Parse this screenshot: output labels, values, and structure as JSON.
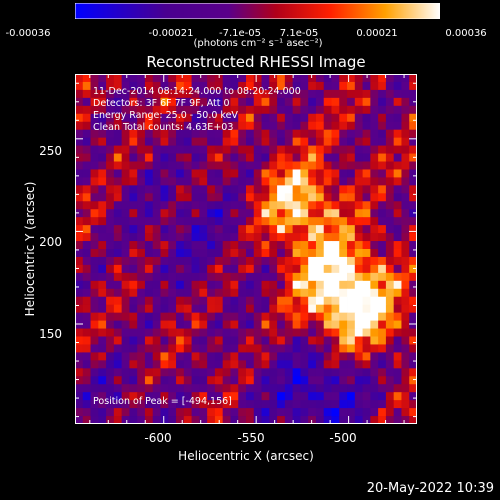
{
  "colorbar": {
    "ticks": [
      "-0.00036",
      "-0.00021",
      "-7.1e-05",
      "7.1e-05",
      "0.00021",
      "0.00036"
    ],
    "unit": "(photons cm⁻² s⁻¹ asec⁻²)",
    "range": [
      -0.00036,
      0.00036
    ]
  },
  "annotations": {
    "time": "11-Dec-2014 08:14:24.000 to 08:20:24.000",
    "detectors": "Detectors: 3F 6F 7F 9F, Att 0",
    "energy": "Energy Range: 25.0 - 50.0 keV",
    "clean": "Clean     Total counts: 4.63E+03",
    "peak": "Position of Peak = [-494,156]"
  },
  "footer": "20-May-2022 10:39",
  "chart_data": {
    "type": "heatmap",
    "title": "Reconstructed RHESSI Image",
    "xlabel": "Heliocentric X (arcsec)",
    "ylabel": "Heliocentric Y (arcsec)",
    "xlim": [
      -648,
      -463
    ],
    "ylim": [
      96,
      285
    ],
    "xticks": [
      -600,
      -550,
      -500
    ],
    "yticks": [
      150,
      200,
      250
    ],
    "colormap": "blue-purple-red-yellow-white",
    "peak": [
      -494,
      156
    ],
    "sources": [
      {
        "x": -528,
        "y": 215
      },
      {
        "x": -508,
        "y": 175
      },
      {
        "x": -494,
        "y": 156
      }
    ]
  }
}
